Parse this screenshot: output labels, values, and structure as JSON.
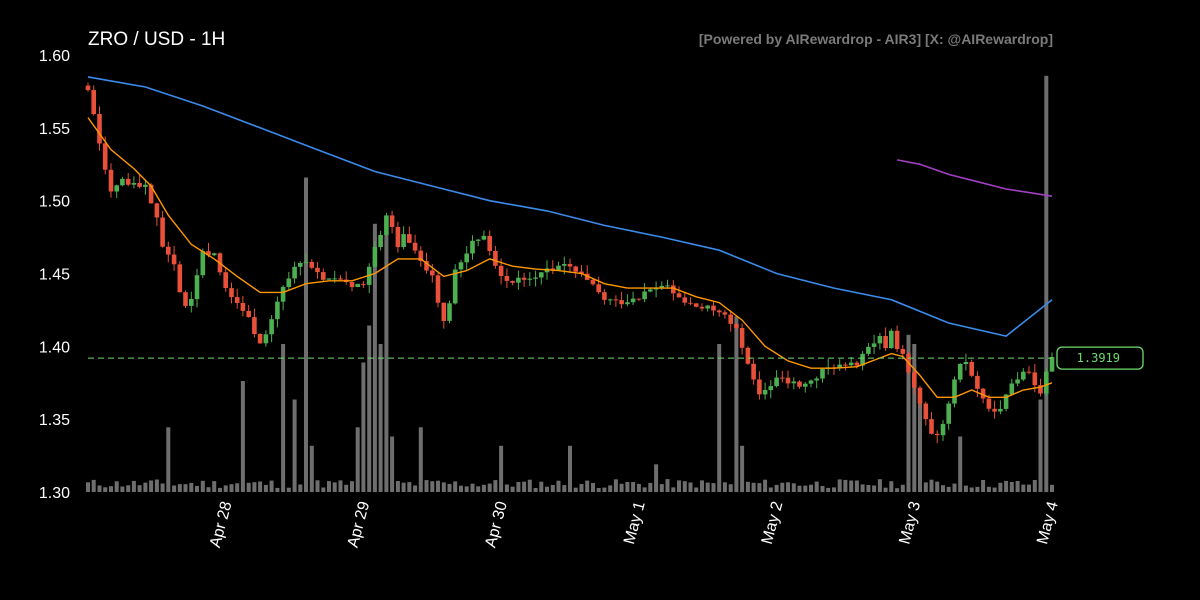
{
  "chart_data": {
    "type": "candlestick",
    "title": "ZRO / USD - 1H",
    "credit": "[Powered by AIRewardrop - AIR3] [X: @AIRewardrop]",
    "ylim": [
      1.3,
      1.6
    ],
    "yticks": [
      "1.30",
      "1.35",
      "1.40",
      "1.45",
      "1.50",
      "1.55",
      "1.60"
    ],
    "xticks": [
      {
        "label": "Apr 28",
        "hour": 24
      },
      {
        "label": "Apr 29",
        "hour": 48
      },
      {
        "label": "Apr 30",
        "hour": 72
      },
      {
        "label": "May 1",
        "hour": 96
      },
      {
        "label": "May 2",
        "hour": 120
      },
      {
        "label": "May 3",
        "hour": 144
      },
      {
        "label": "May 4",
        "hour": 168
      }
    ],
    "hours": 168,
    "current_price": 1.3919,
    "current_price_label": "1.3919",
    "colors": {
      "up": "#4caf50",
      "down": "#e8503a",
      "volume": "#8a8a8a",
      "ema_fast": "#ff9800",
      "ema_slow": "#3b8bea",
      "ema_long": "#a040c0",
      "price_line": "#6ddc6d"
    },
    "close_path": [
      [
        0,
        1.575
      ],
      [
        2,
        1.54
      ],
      [
        3,
        1.52
      ],
      [
        4,
        1.508
      ],
      [
        6,
        1.515
      ],
      [
        8,
        1.512
      ],
      [
        10,
        1.51
      ],
      [
        12,
        1.49
      ],
      [
        13,
        1.47
      ],
      [
        15,
        1.455
      ],
      [
        16,
        1.44
      ],
      [
        17,
        1.425
      ],
      [
        18,
        1.43
      ],
      [
        19,
        1.45
      ],
      [
        20,
        1.465
      ],
      [
        22,
        1.465
      ],
      [
        23,
        1.45
      ],
      [
        24,
        1.44
      ],
      [
        25,
        1.435
      ],
      [
        26,
        1.43
      ],
      [
        27,
        1.425
      ],
      [
        28,
        1.42
      ],
      [
        29,
        1.41
      ],
      [
        30,
        1.405
      ],
      [
        31,
        1.41
      ],
      [
        32,
        1.42
      ],
      [
        33,
        1.43
      ],
      [
        34,
        1.44
      ],
      [
        35,
        1.445
      ],
      [
        36,
        1.455
      ],
      [
        37,
        1.46
      ],
      [
        38,
        1.455
      ],
      [
        40,
        1.45
      ],
      [
        42,
        1.445
      ],
      [
        44,
        1.445
      ],
      [
        46,
        1.44
      ],
      [
        48,
        1.445
      ],
      [
        49,
        1.455
      ],
      [
        50,
        1.47
      ],
      [
        51,
        1.475
      ],
      [
        52,
        1.49
      ],
      [
        53,
        1.48
      ],
      [
        54,
        1.47
      ],
      [
        55,
        1.48
      ],
      [
        56,
        1.47
      ],
      [
        58,
        1.46
      ],
      [
        60,
        1.45
      ],
      [
        61,
        1.43
      ],
      [
        62,
        1.42
      ],
      [
        63,
        1.43
      ],
      [
        64,
        1.45
      ],
      [
        65,
        1.46
      ],
      [
        67,
        1.47
      ],
      [
        69,
        1.478
      ],
      [
        70,
        1.465
      ],
      [
        72,
        1.45
      ],
      [
        74,
        1.443
      ],
      [
        76,
        1.448
      ],
      [
        78,
        1.45
      ],
      [
        80,
        1.452
      ],
      [
        82,
        1.455
      ],
      [
        84,
        1.453
      ],
      [
        86,
        1.448
      ],
      [
        88,
        1.44
      ],
      [
        90,
        1.432
      ],
      [
        92,
        1.43
      ],
      [
        94,
        1.432
      ],
      [
        96,
        1.435
      ],
      [
        98,
        1.438
      ],
      [
        100,
        1.442
      ],
      [
        102,
        1.436
      ],
      [
        104,
        1.43
      ],
      [
        106,
        1.427
      ],
      [
        108,
        1.425
      ],
      [
        110,
        1.425
      ],
      [
        111,
        1.42
      ],
      [
        113,
        1.41
      ],
      [
        114,
        1.4
      ],
      [
        115,
        1.39
      ],
      [
        116,
        1.375
      ],
      [
        117,
        1.365
      ],
      [
        118,
        1.37
      ],
      [
        120,
        1.378
      ],
      [
        122,
        1.375
      ],
      [
        124,
        1.373
      ],
      [
        126,
        1.375
      ],
      [
        128,
        1.382
      ],
      [
        130,
        1.387
      ],
      [
        132,
        1.385
      ],
      [
        134,
        1.388
      ],
      [
        135,
        1.395
      ],
      [
        137,
        1.4
      ],
      [
        138,
        1.405
      ],
      [
        139,
        1.4
      ],
      [
        140,
        1.41
      ],
      [
        141,
        1.4
      ],
      [
        142,
        1.395
      ],
      [
        143,
        1.38
      ],
      [
        144,
        1.37
      ],
      [
        145,
        1.36
      ],
      [
        146,
        1.348
      ],
      [
        147,
        1.338
      ],
      [
        148,
        1.342
      ],
      [
        149,
        1.345
      ],
      [
        150,
        1.36
      ],
      [
        151,
        1.375
      ],
      [
        152,
        1.385
      ],
      [
        153,
        1.39
      ],
      [
        154,
        1.38
      ],
      [
        155,
        1.37
      ],
      [
        156,
        1.365
      ],
      [
        157,
        1.36
      ],
      [
        158,
        1.358
      ],
      [
        159,
        1.355
      ],
      [
        160,
        1.365
      ],
      [
        161,
        1.375
      ],
      [
        162,
        1.38
      ],
      [
        163,
        1.385
      ],
      [
        164,
        1.385
      ],
      [
        165,
        1.375
      ],
      [
        166,
        1.37
      ],
      [
        167,
        1.385
      ],
      [
        168,
        1.3919
      ]
    ],
    "volume_spikes": [
      {
        "hour": 14,
        "value": 0.35
      },
      {
        "hour": 27,
        "value": 0.6
      },
      {
        "hour": 34,
        "value": 0.8
      },
      {
        "hour": 36,
        "value": 0.5
      },
      {
        "hour": 38,
        "value": 1.7
      },
      {
        "hour": 39,
        "value": 0.25
      },
      {
        "hour": 47,
        "value": 0.35
      },
      {
        "hour": 48,
        "value": 0.7
      },
      {
        "hour": 49,
        "value": 0.9
      },
      {
        "hour": 50,
        "value": 1.45
      },
      {
        "hour": 51,
        "value": 0.8
      },
      {
        "hour": 52,
        "value": 1.45
      },
      {
        "hour": 53,
        "value": 0.3
      },
      {
        "hour": 58,
        "value": 0.35
      },
      {
        "hour": 72,
        "value": 0.25
      },
      {
        "hour": 84,
        "value": 0.25
      },
      {
        "hour": 99,
        "value": 0.15
      },
      {
        "hour": 110,
        "value": 0.8
      },
      {
        "hour": 113,
        "value": 0.95
      },
      {
        "hour": 114,
        "value": 0.25
      },
      {
        "hour": 121,
        "value": 0.05
      },
      {
        "hour": 143,
        "value": 0.85
      },
      {
        "hour": 144,
        "value": 0.8
      },
      {
        "hour": 145,
        "value": 0.5
      },
      {
        "hour": 152,
        "value": 0.3
      },
      {
        "hour": 166,
        "value": 0.5
      },
      {
        "hour": 167,
        "value": 2.25
      }
    ],
    "ema_fast": [
      [
        0,
        1.557
      ],
      [
        4,
        1.535
      ],
      [
        8,
        1.522
      ],
      [
        11,
        1.51
      ],
      [
        14,
        1.49
      ],
      [
        18,
        1.47
      ],
      [
        22,
        1.46
      ],
      [
        26,
        1.448
      ],
      [
        30,
        1.437
      ],
      [
        34,
        1.437
      ],
      [
        38,
        1.443
      ],
      [
        42,
        1.445
      ],
      [
        46,
        1.445
      ],
      [
        50,
        1.45
      ],
      [
        54,
        1.46
      ],
      [
        58,
        1.46
      ],
      [
        62,
        1.448
      ],
      [
        66,
        1.452
      ],
      [
        70,
        1.46
      ],
      [
        74,
        1.455
      ],
      [
        78,
        1.453
      ],
      [
        82,
        1.452
      ],
      [
        86,
        1.45
      ],
      [
        90,
        1.443
      ],
      [
        94,
        1.44
      ],
      [
        98,
        1.44
      ],
      [
        102,
        1.44
      ],
      [
        106,
        1.434
      ],
      [
        110,
        1.43
      ],
      [
        114,
        1.418
      ],
      [
        118,
        1.4
      ],
      [
        122,
        1.39
      ],
      [
        126,
        1.385
      ],
      [
        130,
        1.385
      ],
      [
        134,
        1.386
      ],
      [
        138,
        1.392
      ],
      [
        140,
        1.395
      ],
      [
        142,
        1.393
      ],
      [
        145,
        1.38
      ],
      [
        148,
        1.365
      ],
      [
        151,
        1.365
      ],
      [
        154,
        1.37
      ],
      [
        157,
        1.365
      ],
      [
        160,
        1.365
      ],
      [
        163,
        1.37
      ],
      [
        166,
        1.372
      ],
      [
        168,
        1.375
      ]
    ],
    "ema_slow": [
      [
        0,
        1.585
      ],
      [
        10,
        1.578
      ],
      [
        20,
        1.565
      ],
      [
        30,
        1.55
      ],
      [
        40,
        1.535
      ],
      [
        50,
        1.52
      ],
      [
        60,
        1.51
      ],
      [
        70,
        1.5
      ],
      [
        80,
        1.493
      ],
      [
        90,
        1.483
      ],
      [
        100,
        1.475
      ],
      [
        110,
        1.466
      ],
      [
        120,
        1.45
      ],
      [
        130,
        1.44
      ],
      [
        140,
        1.432
      ],
      [
        150,
        1.416
      ],
      [
        160,
        1.407
      ],
      [
        168,
        1.432
      ]
    ],
    "ema_long": [
      [
        141,
        1.528
      ],
      [
        145,
        1.525
      ],
      [
        150,
        1.518
      ],
      [
        155,
        1.513
      ],
      [
        160,
        1.508
      ],
      [
        165,
        1.505
      ],
      [
        168,
        1.503
      ]
    ]
  }
}
